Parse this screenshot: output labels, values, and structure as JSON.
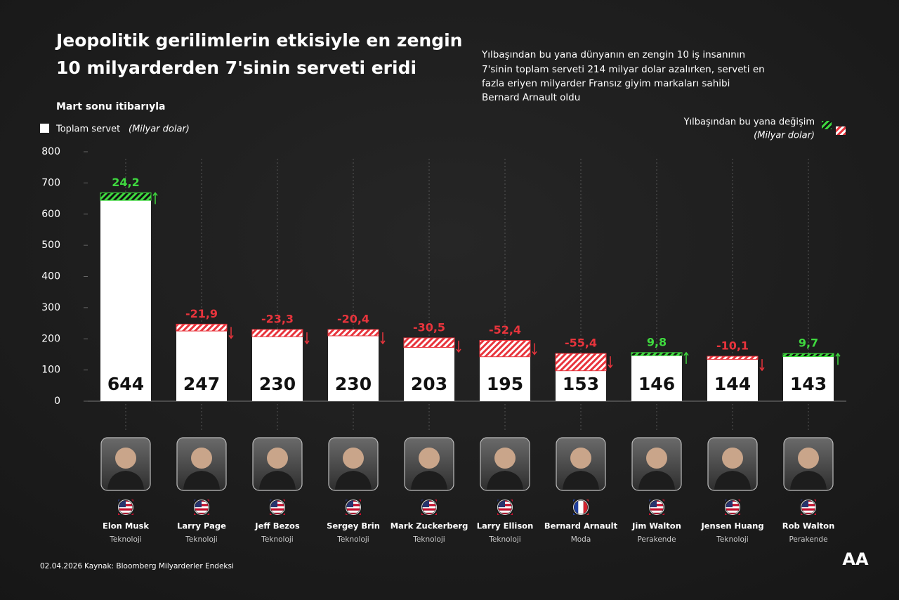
{
  "header": {
    "title": [
      "Jeopolitik gerilimlerin etkisiyle en zengin",
      "10 milyarderden 7'sinin serveti eridi"
    ],
    "subtitle": [
      "Yılbaşından bu yana dünyanın en zengin 10 iş insanının",
      "7'sinin toplam serveti 214 milyar dolar azalırken, serveti en",
      "fazla eriyen milyarder Fransız giyim markaları sahibi",
      "Bernard Arnault oldu"
    ],
    "date_note": "Mart sonu itibarıyla"
  },
  "chart_data": {
    "type": "bar",
    "categories": [
      "Elon Musk",
      "Larry Page",
      "Jeff Bezos",
      "Sergey Brin",
      "Mark Zuckerberg",
      "Larry Ellison",
      "Bernard Arnault",
      "Jim Walton",
      "Jensen Huang",
      "Rob Walton"
    ],
    "sectors": [
      "Teknoloji",
      "Teknoloji",
      "Teknoloji",
      "Teknoloji",
      "Teknoloji",
      "Teknoloji",
      "Moda",
      "Perakende",
      "Teknoloji",
      "Perakende"
    ],
    "series": [
      {
        "name": "Toplam servet",
        "unit": "(Milyar dolar)",
        "color": "#ffffff",
        "values": [
          644,
          247,
          230,
          230,
          203,
          195,
          153,
          146,
          144,
          143
        ]
      },
      {
        "name": "Yılbaşından bu yana değişim",
        "unit": "(Milyar dolar)",
        "color_up": "#3fd93f",
        "color_down": "#e8343c",
        "values": [
          24.2,
          -21.9,
          -23.3,
          -20.4,
          -30.5,
          -52.4,
          -55.4,
          9.8,
          -10.1,
          9.7
        ],
        "value_labels": [
          "24,2",
          "-21,9",
          "-23,3",
          "-20,4",
          "-30,5",
          "-52,4",
          "-55,4",
          "9,8",
          "-10,1",
          "9,7"
        ]
      }
    ],
    "ylim": [
      0,
      800
    ],
    "yticks": [
      0,
      100,
      200,
      300,
      400,
      500,
      600,
      700,
      800
    ]
  },
  "footer": {
    "date": "02.04.2026",
    "source": "Kaynak: Bloomberg Milyarderler Endeksi",
    "logo": "AA"
  }
}
